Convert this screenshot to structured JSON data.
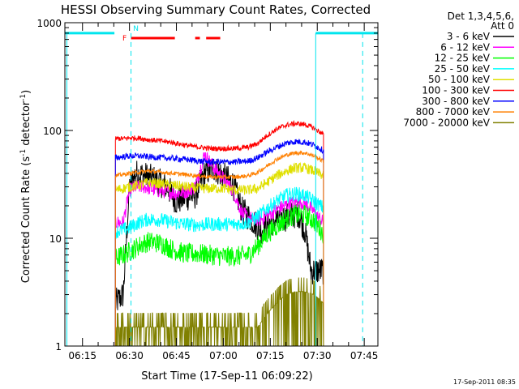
{
  "chart_data": {
    "type": "line",
    "title": "HESSI Observing Summary Count Rates, Corrected",
    "xlabel": "Start Time (17-Sep-11 06:09:22)",
    "ylabel": "Corrected Count Rate (s⁻¹ detector⁻¹)",
    "ylabel_parts": {
      "pre": "Corrected Count Rate (s",
      "sup1": "-1",
      "mid": " detector",
      "sup2": "-1",
      "post": ")"
    },
    "y_scale": "log",
    "ylim": [
      1,
      1000
    ],
    "xlim_minutes": [
      369.37,
      469.37
    ],
    "x_ticks": [
      {
        "label": "06:15",
        "min": 375
      },
      {
        "label": "06:30",
        "min": 390
      },
      {
        "label": "06:45",
        "min": 405
      },
      {
        "label": "07:00",
        "min": 420
      },
      {
        "label": "07:15",
        "min": 435
      },
      {
        "label": "07:30",
        "min": 450
      },
      {
        "label": "07:45",
        "min": 465
      }
    ],
    "y_ticks": [
      {
        "label": "1",
        "value": 1
      },
      {
        "label": "10",
        "value": 10
      },
      {
        "label": "100",
        "value": 100
      },
      {
        "label": "1000",
        "value": 1000
      }
    ],
    "legend": {
      "placement": "right",
      "header_line1": "Det 1,3,4,5,6,",
      "header_line2": "Att 0"
    },
    "footer_date": "17-Sep-2011 08:35",
    "data_span_minutes": [
      385.5,
      452.0
    ],
    "series": [
      {
        "name": "3 - 6 keV",
        "color": "#000000",
        "noise": 0.14,
        "x": [
          385.5,
          388,
          390,
          392,
          395,
          398,
          402,
          405,
          408,
          411,
          414,
          417,
          420,
          423,
          426,
          429,
          432,
          435,
          438,
          441,
          444,
          446,
          448,
          450,
          452
        ],
        "y": [
          2.5,
          3.0,
          30,
          40,
          38,
          35,
          30,
          22,
          24,
          25,
          40,
          45,
          38,
          32,
          18,
          15,
          12,
          14,
          15,
          16,
          17,
          12,
          5,
          5,
          5
        ]
      },
      {
        "name": "6 - 12 keV",
        "color": "#ff00ff",
        "noise": 0.07,
        "x": [
          385.5,
          388,
          390,
          392,
          395,
          398,
          402,
          405,
          408,
          411,
          414,
          417,
          420,
          423,
          426,
          429,
          432,
          435,
          438,
          441,
          444,
          446,
          448,
          450,
          452
        ],
        "y": [
          14,
          14,
          28,
          30,
          30,
          28,
          27,
          26,
          27,
          30,
          60,
          45,
          36,
          28,
          17,
          15,
          15,
          17,
          19,
          21,
          22,
          21,
          19,
          16,
          14
        ]
      },
      {
        "name": "12 - 25 keV",
        "color": "#00ff00",
        "noise": 0.1,
        "x": [
          385.5,
          388,
          390,
          393,
          396,
          400,
          404,
          408,
          412,
          416,
          420,
          424,
          428,
          431,
          434,
          437,
          440,
          443,
          446,
          449,
          452
        ],
        "y": [
          6.5,
          7,
          7.5,
          8.5,
          9.3,
          9.0,
          7.8,
          7.2,
          7.2,
          7.0,
          6.8,
          6.8,
          7.0,
          8.5,
          11,
          13,
          15,
          16.5,
          16.5,
          14.5,
          11
        ]
      },
      {
        "name": "25 - 50 keV",
        "color": "#00ffff",
        "noise": 0.07,
        "x": [
          385.5,
          388,
          390,
          393,
          396,
          400,
          404,
          408,
          412,
          416,
          420,
          424,
          428,
          431,
          434,
          437,
          440,
          443,
          446,
          449,
          452
        ],
        "y": [
          11.5,
          12,
          12.5,
          14,
          15,
          14.8,
          14,
          13.5,
          13.3,
          13.5,
          13.5,
          13.5,
          14,
          16,
          19,
          22,
          25,
          26,
          25,
          22,
          19
        ]
      },
      {
        "name": "50 - 100 keV",
        "color": "#e0e000",
        "noise": 0.05,
        "x": [
          385.5,
          388,
          390,
          393,
          396,
          400,
          404,
          408,
          412,
          416,
          420,
          424,
          428,
          431,
          434,
          437,
          440,
          443,
          446,
          449,
          452
        ],
        "y": [
          28,
          29,
          30,
          31,
          33,
          32,
          31,
          30,
          29,
          29,
          29,
          28,
          28,
          29,
          33,
          38,
          42,
          45,
          45,
          42,
          38
        ]
      },
      {
        "name": "100 - 300 keV",
        "color": "#ff0000",
        "noise": 0.025,
        "x": [
          385.5,
          388,
          390,
          393,
          396,
          400,
          404,
          408,
          412,
          416,
          420,
          424,
          428,
          431,
          434,
          437,
          440,
          443,
          446,
          449,
          452
        ],
        "y": [
          84,
          84,
          85,
          85,
          82,
          80,
          77,
          73,
          70,
          68,
          68,
          68,
          70,
          76,
          90,
          103,
          112,
          116,
          114,
          105,
          92
        ]
      },
      {
        "name": "300 - 800 keV",
        "color": "#0000ff",
        "noise": 0.03,
        "x": [
          385.5,
          388,
          390,
          393,
          396,
          400,
          404,
          408,
          412,
          416,
          420,
          424,
          428,
          431,
          434,
          437,
          440,
          443,
          446,
          449,
          452
        ],
        "y": [
          56,
          57,
          58,
          58,
          57,
          56,
          55,
          54,
          52,
          51,
          51,
          51,
          52,
          56,
          63,
          70,
          76,
          79,
          78,
          73,
          65
        ]
      },
      {
        "name": "800 - 7000 keV",
        "color": "#ff8000",
        "noise": 0.02,
        "x": [
          385.5,
          388,
          390,
          393,
          396,
          400,
          404,
          408,
          412,
          416,
          420,
          424,
          428,
          431,
          434,
          437,
          440,
          443,
          446,
          449,
          452
        ],
        "y": [
          38,
          39,
          40,
          41,
          42,
          41,
          40,
          39,
          38,
          37,
          37,
          37,
          38,
          41,
          47,
          54,
          59,
          62,
          62,
          58,
          52
        ]
      },
      {
        "name": "7000 - 20000 keV",
        "color": "#808000",
        "noise": 0.0,
        "x": [
          385.5,
          388,
          390,
          393,
          396,
          400,
          404,
          408,
          412,
          416,
          420,
          424,
          428,
          431,
          434,
          437,
          440,
          443,
          446,
          449,
          452
        ],
        "y": [
          1.5,
          1.5,
          1.5,
          1.5,
          1.5,
          1.5,
          1.5,
          1.5,
          1.5,
          1.5,
          1.5,
          1.5,
          1.5,
          1.5,
          2.0,
          2.5,
          3.0,
          3.2,
          3.2,
          3.0,
          2.5
        ]
      }
    ],
    "flags": {
      "night_label": "N",
      "flare_label": "F",
      "night_intervals": [
        [
          369.37,
          385.2
        ],
        [
          449.5,
          469.37
        ]
      ],
      "night_marks": [
        390.5,
        464.5
      ],
      "flare_segments": [
        [
          390.5,
          404.5
        ],
        [
          411.0,
          412.5
        ],
        [
          414.5,
          419.0
        ]
      ],
      "flag_level": 800,
      "flare_level": 720,
      "night_color": "#00e5ee",
      "flare_color": "#ff0000"
    },
    "vertical_lines": [
      {
        "x": 370.0,
        "style": "solid",
        "color": "#00e5ee"
      },
      {
        "x": 390.5,
        "style": "dashed",
        "color": "#00e5ee"
      },
      {
        "x": 449.5,
        "style": "solid",
        "color": "#00e5ee"
      },
      {
        "x": 464.5,
        "style": "dashed",
        "color": "#00e5ee"
      }
    ]
  }
}
